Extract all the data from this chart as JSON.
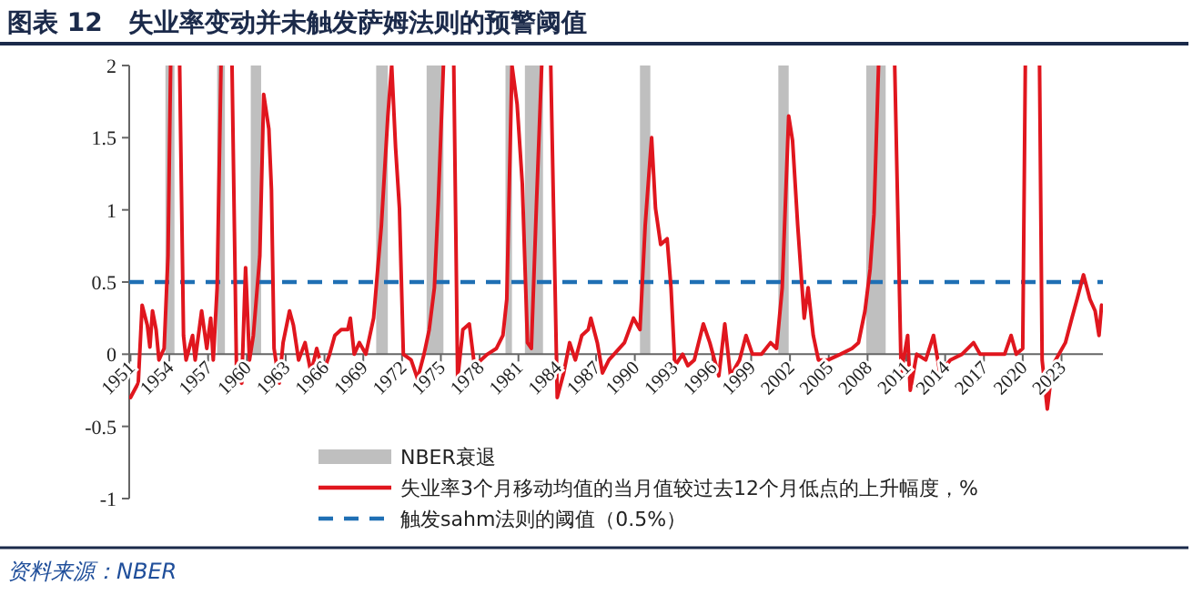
{
  "chart_data": {
    "type": "line",
    "title": "图表 12　失业率变动并未触发萨姆法则的预警阈值",
    "annotations": [
      "资料来源：NBER"
    ],
    "xlim": [
      1950.9,
      2026.2
    ],
    "ylim": [
      -1,
      2
    ],
    "xticks": [
      1951,
      1954,
      1957,
      1960,
      1963,
      1966,
      1969,
      1972,
      1975,
      1978,
      1981,
      1984,
      1987,
      1990,
      1993,
      1996,
      1999,
      2002,
      2005,
      2008,
      2011,
      2014,
      2017,
      2020,
      2023
    ],
    "yticks": [
      -1,
      -0.5,
      0,
      0.5,
      1,
      1.5,
      2
    ],
    "legend": "bottom",
    "grid": false,
    "bands": [
      {
        "axis": "x",
        "from": 1953.7,
        "to": 1954.4,
        "label": "NBER衰退",
        "color": "#bfbfbf"
      },
      {
        "axis": "x",
        "from": 1957.7,
        "to": 1958.3,
        "color": "#bfbfbf"
      },
      {
        "axis": "x",
        "from": 1960.3,
        "to": 1961.1,
        "color": "#bfbfbf"
      },
      {
        "axis": "x",
        "from": 1970.0,
        "to": 1970.9,
        "color": "#bfbfbf"
      },
      {
        "axis": "x",
        "from": 1973.9,
        "to": 1975.2,
        "color": "#bfbfbf"
      },
      {
        "axis": "x",
        "from": 1980.0,
        "to": 1980.5,
        "color": "#bfbfbf"
      },
      {
        "axis": "x",
        "from": 1981.5,
        "to": 1982.9,
        "color": "#bfbfbf"
      },
      {
        "axis": "x",
        "from": 1990.4,
        "to": 1991.2,
        "color": "#bfbfbf"
      },
      {
        "axis": "x",
        "from": 2001.1,
        "to": 2001.9,
        "color": "#bfbfbf"
      },
      {
        "axis": "x",
        "from": 2007.9,
        "to": 2009.4,
        "color": "#bfbfbf"
      }
    ],
    "ref_lines": [
      {
        "axis": "y",
        "value": 0.5,
        "label": "触发sahm法则的阈值（0.5%）",
        "color": "#1f6fb4",
        "line_style": "dashed"
      }
    ],
    "series": [
      {
        "name": "失业率3个月移动均值的当月值较过去12个月低点的上升幅度，%",
        "color": "#e0161e",
        "line_style": "solid",
        "x": [
          1951.0,
          1951.6,
          1951.9,
          1952.3,
          1952.5,
          1952.7,
          1952.98,
          1953.2,
          1953.6,
          1953.9,
          1954.1,
          1954.8,
          1955.1,
          1955.3,
          1955.8,
          1956.0,
          1956.5,
          1956.9,
          1957.2,
          1957.4,
          1957.7,
          1958.0,
          1958.85,
          1959.2,
          1959.6,
          1959.9,
          1960.2,
          1960.5,
          1961.0,
          1961.3,
          1961.7,
          1961.9,
          1962.1,
          1962.5,
          1962.8,
          1963.3,
          1963.6,
          1964.0,
          1964.5,
          1964.96,
          1965.4,
          1965.9,
          1966.4,
          1966.8,
          1967.3,
          1967.8,
          1968.0,
          1968.3,
          1968.7,
          1969.2,
          1969.8,
          1970.4,
          1970.9,
          1971.2,
          1971.5,
          1971.8,
          1972.1,
          1972.7,
          1973.2,
          1973.7,
          1974.1,
          1974.5,
          1974.8,
          1975.2,
          1976.0,
          1976.3,
          1976.7,
          1977.2,
          1977.6,
          1978.1,
          1978.6,
          1979.3,
          1979.8,
          1980.1,
          1980.5,
          1980.9,
          1981.3,
          1981.7,
          1982.0,
          1982.4,
          1982.8,
          1983.5,
          1984.0,
          1984.5,
          1984.96,
          1985.4,
          1985.9,
          1986.4,
          1986.6,
          1987.1,
          1987.5,
          1988.0,
          1989.2,
          1989.9,
          1990.4,
          1990.8,
          1991.3,
          1991.6,
          1992.0,
          1992.5,
          1992.8,
          1993.1,
          1993.7,
          1994.1,
          1994.6,
          1995.3,
          1995.8,
          1996.5,
          1996.96,
          1997.4,
          1998.1,
          1998.6,
          1999.1,
          1999.8,
          2000.5,
          2000.96,
          2001.4,
          2001.9,
          2002.2,
          2002.6,
          2003.1,
          2003.4,
          2003.8,
          2004.2,
          2004.95,
          2005.9,
          2006.8,
          2007.3,
          2007.8,
          2008.2,
          2008.5,
          2008.85,
          2010.1,
          2010.6,
          2011.1,
          2011.3,
          2011.8,
          2012.5,
          2013.1,
          2013.6,
          2014.4,
          2015.3,
          2016.2,
          2016.7,
          2017.6,
          2018.6,
          2019.1,
          2019.5,
          2020.0,
          2020.2,
          2021.3,
          2021.5,
          2021.9,
          2022.3,
          2022.8,
          2023.3,
          2023.8,
          2024.2,
          2024.7,
          2025.2,
          2025.6,
          2025.9,
          2026.1
        ],
        "values": [
          -0.3,
          -0.2,
          0.34,
          0.2,
          0.05,
          0.3,
          0.17,
          -0.04,
          0.04,
          0.68,
          2,
          2,
          0.13,
          -0.04,
          0.13,
          -0.04,
          0.3,
          0.04,
          0.25,
          -0.04,
          0.46,
          2,
          2,
          -0.13,
          -0.2,
          0.6,
          -0.04,
          0.13,
          0.68,
          1.8,
          1.56,
          1.14,
          0.04,
          -0.2,
          0.08,
          0.3,
          0.2,
          -0.04,
          0.08,
          -0.13,
          0.04,
          -0.13,
          0,
          0.13,
          0.17,
          0.17,
          0.25,
          0,
          0.08,
          0,
          0.25,
          0.89,
          1.65,
          2,
          1.43,
          1.01,
          0,
          -0.04,
          -0.17,
          0,
          0.17,
          0.46,
          1.05,
          2,
          2,
          -0.17,
          0.17,
          0.21,
          -0.08,
          -0.04,
          0,
          0.04,
          0.13,
          0.38,
          2,
          1.73,
          1.18,
          0.08,
          0.04,
          1.05,
          2,
          2,
          -0.3,
          -0.13,
          0.08,
          -0.04,
          0.13,
          0.17,
          0.25,
          0.08,
          -0.13,
          -0.04,
          0.08,
          0.25,
          0.17,
          0.89,
          1.5,
          1.01,
          0.76,
          0.8,
          0.46,
          -0.08,
          0,
          -0.08,
          -0.04,
          0.21,
          0.08,
          -0.15,
          0.21,
          -0.15,
          -0.04,
          0.13,
          0,
          0,
          0.08,
          0.04,
          0.46,
          1.65,
          1.48,
          0.89,
          0.25,
          0.46,
          0.13,
          -0.04,
          -0.04,
          0,
          0.04,
          0.08,
          0.3,
          0.59,
          0.97,
          2,
          2,
          -0.13,
          0.13,
          -0.25,
          0,
          -0.04,
          0.13,
          -0.13,
          -0.04,
          0,
          0.08,
          0,
          0,
          0,
          0.13,
          0,
          0.04,
          2,
          2,
          -0.04,
          -0.38,
          -0.08,
          0,
          0.08,
          0.25,
          0.38,
          0.55,
          0.38,
          0.3,
          0.13,
          0.34
        ]
      }
    ]
  }
}
